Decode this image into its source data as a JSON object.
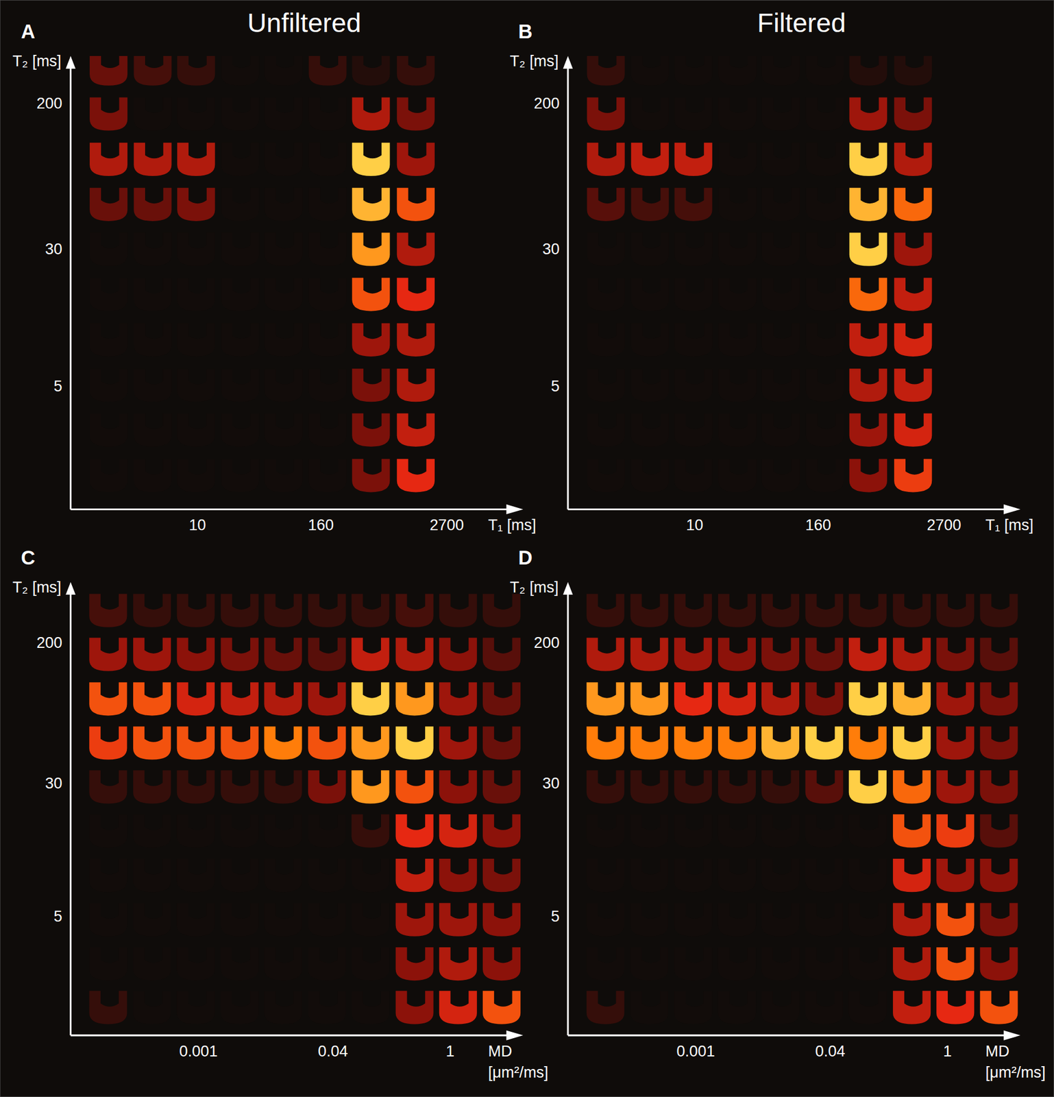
{
  "chart_data": [
    {
      "type": "heatmap",
      "panel_label": "A",
      "title": "Unfiltered",
      "x_label": "T₁ [ms]",
      "y_label": "T₂ [ms]",
      "log": true,
      "xlim": [
        0.58,
        15000
      ],
      "ylim": [
        1,
        370
      ],
      "xticks": [
        10,
        160,
        2700
      ],
      "yticks": [
        200,
        30,
        5
      ],
      "x": [
        1.36,
        3.66,
        9.7,
        26,
        69,
        186,
        492,
        1346
      ],
      "y": [
        322,
        179,
        99,
        55,
        30.6,
        17,
        9.4,
        5.2,
        2.9,
        1.6
      ],
      "cells": [
        [
          0.25,
          0.15,
          0.1,
          0,
          0,
          0.1,
          0.05,
          0.1
        ],
        [
          0.3,
          0,
          0,
          0,
          0,
          0,
          0.45,
          0.3
        ],
        [
          0.45,
          0.45,
          0.45,
          0,
          0,
          0,
          0.95,
          0.4
        ],
        [
          0.25,
          0.25,
          0.3,
          0,
          0,
          0,
          0.9,
          0.7
        ],
        [
          0,
          0,
          0,
          0,
          0,
          0,
          0.85,
          0.45
        ],
        [
          0,
          0,
          0,
          0,
          0,
          0,
          0.7,
          0.6
        ],
        [
          0,
          0,
          0,
          0,
          0,
          0,
          0.4,
          0.45
        ],
        [
          0,
          0,
          0,
          0,
          0,
          0,
          0.3,
          0.45
        ],
        [
          0,
          0,
          0,
          0,
          0,
          0,
          0.3,
          0.5
        ],
        [
          0,
          0,
          0,
          0,
          0,
          0,
          0.3,
          0.6
        ]
      ]
    },
    {
      "type": "heatmap",
      "panel_label": "B",
      "title": "Filtered",
      "x_label": "T₁ [ms]",
      "y_label": "T₂ [ms]",
      "log": true,
      "xlim": [
        0.58,
        15000
      ],
      "ylim": [
        1,
        370
      ],
      "xticks": [
        10,
        160,
        2700
      ],
      "yticks": [
        200,
        30,
        5
      ],
      "x": [
        1.36,
        3.66,
        9.7,
        26,
        69,
        186,
        492,
        1346
      ],
      "y": [
        322,
        179,
        99,
        55,
        30.6,
        17,
        9.4,
        5.2,
        2.9,
        1.6
      ],
      "cells": [
        [
          0.1,
          0,
          0,
          0,
          0,
          0,
          0.05,
          0.05
        ],
        [
          0.3,
          0,
          0,
          0,
          0,
          0,
          0.4,
          0.3
        ],
        [
          0.45,
          0.5,
          0.5,
          0,
          0,
          0,
          0.95,
          0.45
        ],
        [
          0.2,
          0.15,
          0.15,
          0,
          0,
          0,
          0.9,
          0.75
        ],
        [
          0,
          0,
          0,
          0,
          0,
          0,
          0.95,
          0.4
        ],
        [
          0,
          0,
          0,
          0,
          0,
          0,
          0.75,
          0.5
        ],
        [
          0,
          0,
          0,
          0,
          0,
          0,
          0.5,
          0.55
        ],
        [
          0,
          0,
          0,
          0,
          0,
          0,
          0.45,
          0.5
        ],
        [
          0,
          0,
          0,
          0,
          0,
          0,
          0.4,
          0.55
        ],
        [
          0,
          0,
          0,
          0,
          0,
          0,
          0.35,
          0.65
        ]
      ]
    },
    {
      "type": "heatmap",
      "panel_label": "C",
      "x_label": "MD [μm²/ms]",
      "y_label": "T₂ [ms]",
      "log": true,
      "xlim": [
        3e-05,
        7.4
      ],
      "ylim": [
        1,
        450
      ],
      "xticks": [
        0.001,
        0.04,
        1
      ],
      "yticks": [
        200,
        30,
        5
      ],
      "x": [
        8.4e-05,
        0.00028,
        0.00093,
        0.0031,
        0.0102,
        0.034,
        0.112,
        0.376,
        1.24,
        4.1
      ],
      "y": [
        316,
        175,
        96,
        53,
        29.3,
        16.2,
        8.9,
        4.9,
        2.7,
        1.5
      ],
      "cells": [
        [
          0.15,
          0.1,
          0.1,
          0.1,
          0.1,
          0.1,
          0.1,
          0.15,
          0.1,
          0.1
        ],
        [
          0.4,
          0.4,
          0.35,
          0.3,
          0.25,
          0.2,
          0.5,
          0.45,
          0.35,
          0.2
        ],
        [
          0.7,
          0.7,
          0.55,
          0.5,
          0.45,
          0.4,
          0.95,
          0.85,
          0.4,
          0.25
        ],
        [
          0.65,
          0.7,
          0.7,
          0.7,
          0.8,
          0.7,
          0.85,
          0.95,
          0.4,
          0.25
        ],
        [
          0.1,
          0.1,
          0.1,
          0.1,
          0.1,
          0.3,
          0.85,
          0.7,
          0.35,
          0.25
        ],
        [
          0,
          0,
          0,
          0,
          0,
          0,
          0.1,
          0.6,
          0.55,
          0.35
        ],
        [
          0,
          0,
          0,
          0,
          0,
          0,
          0,
          0.5,
          0.35,
          0.3
        ],
        [
          0,
          0,
          0,
          0,
          0,
          0,
          0,
          0.4,
          0.4,
          0.35
        ],
        [
          0,
          0,
          0,
          0,
          0,
          0,
          0,
          0.35,
          0.45,
          0.35
        ],
        [
          0.1,
          0,
          0,
          0,
          0,
          0,
          0,
          0.35,
          0.55,
          0.7
        ]
      ]
    },
    {
      "type": "heatmap",
      "panel_label": "D",
      "x_label": "MD [μm²/ms]",
      "y_label": "T₂ [ms]",
      "log": true,
      "xlim": [
        3e-05,
        7.4
      ],
      "ylim": [
        1,
        450
      ],
      "xticks": [
        0.001,
        0.04,
        1
      ],
      "yticks": [
        200,
        30,
        5
      ],
      "x": [
        8.4e-05,
        0.00028,
        0.00093,
        0.0031,
        0.0102,
        0.034,
        0.112,
        0.376,
        1.24,
        4.1
      ],
      "y": [
        316,
        175,
        96,
        53,
        29.3,
        16.2,
        8.9,
        4.9,
        2.7,
        1.5
      ],
      "cells": [
        [
          0.1,
          0.1,
          0.1,
          0.1,
          0.1,
          0.1,
          0.1,
          0.1,
          0.1,
          0.1
        ],
        [
          0.45,
          0.45,
          0.4,
          0.35,
          0.3,
          0.25,
          0.5,
          0.45,
          0.3,
          0.2
        ],
        [
          0.85,
          0.85,
          0.6,
          0.55,
          0.45,
          0.3,
          0.95,
          0.9,
          0.4,
          0.3
        ],
        [
          0.8,
          0.8,
          0.8,
          0.8,
          0.9,
          0.95,
          0.8,
          0.95,
          0.4,
          0.3
        ],
        [
          0.1,
          0.1,
          0.1,
          0.1,
          0.1,
          0.2,
          0.95,
          0.75,
          0.4,
          0.3
        ],
        [
          0,
          0,
          0,
          0,
          0,
          0,
          0,
          0.7,
          0.65,
          0.2
        ],
        [
          0,
          0,
          0,
          0,
          0,
          0,
          0,
          0.55,
          0.4,
          0.35
        ],
        [
          0,
          0,
          0,
          0,
          0,
          0,
          0,
          0.45,
          0.7,
          0.3
        ],
        [
          0,
          0,
          0,
          0,
          0,
          0,
          0,
          0.45,
          0.7,
          0.35
        ],
        [
          0.1,
          0,
          0,
          0,
          0,
          0,
          0,
          0.5,
          0.6,
          0.7
        ]
      ]
    }
  ]
}
